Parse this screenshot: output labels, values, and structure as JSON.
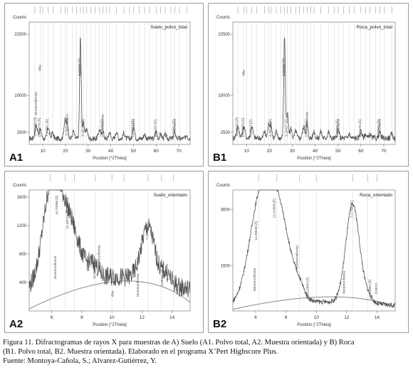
{
  "figure": {
    "caption_lines": [
      "Figura 11. Difractogramas de rayos X para muestras de A) Suelo (A1. Polvo total, A2. Muestra orientada) y B) Roca",
      "(B1. Polvo total, B2. Muestra orientada). Elaborado en el programa X’Pert Highscore Plus.",
      "Fuente: Montoya-Cañola, S.; Alvarez-Gutiérrez, Y."
    ]
  },
  "chart_data": [
    {
      "panel_label": "A1",
      "type": "line",
      "title": "Suelo_polvo_total",
      "ylabel": "Counts",
      "xlabel": "Position [°2Theta]",
      "xlim": [
        4,
        75
      ],
      "ylim": [
        0,
        25000
      ],
      "x_ticks": [
        10,
        20,
        30,
        40,
        50,
        60,
        70
      ],
      "y_ticks": [
        2500,
        10000,
        22500
      ],
      "baseline": 1200,
      "peaks": [
        {
          "x": 7.1,
          "y": 2600,
          "w": 0.6
        },
        {
          "x": 8.9,
          "y": 1800,
          "w": 0.5
        },
        {
          "x": 12.4,
          "y": 2300,
          "w": 0.5
        },
        {
          "x": 14.3,
          "y": 1200,
          "w": 0.4
        },
        {
          "x": 19.8,
          "y": 3800,
          "w": 0.5
        },
        {
          "x": 20.9,
          "y": 2800,
          "w": 0.4
        },
        {
          "x": 23.5,
          "y": 1500,
          "w": 0.4
        },
        {
          "x": 26.6,
          "y": 20800,
          "w": 0.35
        },
        {
          "x": 28.0,
          "y": 3500,
          "w": 0.4
        },
        {
          "x": 29.4,
          "y": 2000,
          "w": 0.4
        },
        {
          "x": 35.0,
          "y": 1800,
          "w": 0.5
        },
        {
          "x": 36.5,
          "y": 1600,
          "w": 0.4
        },
        {
          "x": 39.5,
          "y": 1300,
          "w": 0.4
        },
        {
          "x": 42.5,
          "y": 1500,
          "w": 0.4
        },
        {
          "x": 45.8,
          "y": 1200,
          "w": 0.4
        },
        {
          "x": 50.1,
          "y": 2700,
          "w": 0.4
        },
        {
          "x": 54.9,
          "y": 900,
          "w": 0.4
        },
        {
          "x": 60.0,
          "y": 1500,
          "w": 0.4
        },
        {
          "x": 62.0,
          "y": 900,
          "w": 0.4
        },
        {
          "x": 64.0,
          "y": 800,
          "w": 0.4
        },
        {
          "x": 68.2,
          "y": 1400,
          "w": 0.4
        },
        {
          "x": 73.5,
          "y": 800,
          "w": 0.4
        }
      ],
      "ref_lines": [
        6.5,
        8.8,
        10.0,
        12.3,
        14.5,
        17.9,
        19.8,
        20.9,
        23.1,
        24.9,
        26.6,
        27.9,
        29.4,
        31.2,
        33.1,
        35.0,
        36.5,
        38.1,
        39.5,
        42.5,
        45.8,
        48.3,
        50.1,
        52.5,
        54.9,
        57.1,
        60.0,
        62.0,
        64.0,
        66.5,
        68.2,
        70.3,
        73.5
      ],
      "annotations": [
        {
          "x": 26.6,
          "y": 14000,
          "text": "3,34292 [Å]"
        },
        {
          "x": 26.9,
          "y": 14000,
          "text": "Cuarzo"
        },
        {
          "x": 7.0,
          "y": 1600,
          "text": "14,96338 [Å]"
        },
        {
          "x": 7.4,
          "y": 6000,
          "text": "Montmorillonita"
        },
        {
          "x": 8.9,
          "y": 1500,
          "text": "10,01170 [Å]"
        },
        {
          "x": 9.2,
          "y": 15000,
          "text": "Illita"
        },
        {
          "x": 12.4,
          "y": 1600,
          "text": "7,17521 [Å]"
        },
        {
          "x": 20.9,
          "y": 1800,
          "text": "4,25721 [Å]"
        },
        {
          "x": 21.2,
          "y": 4000,
          "text": "Cuarzo"
        },
        {
          "x": 28.0,
          "y": 1600,
          "text": "3,19130 [Å]"
        },
        {
          "x": 36.5,
          "y": 1500,
          "text": "2,45913 [Å]"
        },
        {
          "x": 36.9,
          "y": 3000,
          "text": "Moscovita"
        },
        {
          "x": 50.1,
          "y": 1500,
          "text": "1,81813 [Å]"
        },
        {
          "x": 50.5,
          "y": 3000,
          "text": "Cuarzo"
        },
        {
          "x": 60.0,
          "y": 1500,
          "text": "1,54162 [Å]"
        },
        {
          "x": 68.2,
          "y": 1500,
          "text": "1,37541 [Å]"
        },
        {
          "x": 68.6,
          "y": 3000,
          "text": "Cuarzo"
        }
      ]
    },
    {
      "panel_label": "B1",
      "type": "line",
      "title": "Roca_polvo_total",
      "ylabel": "Counts",
      "xlabel": "Position [°2Theta]",
      "xlim": [
        4,
        75
      ],
      "ylim": [
        0,
        25000
      ],
      "x_ticks": [
        10,
        20,
        30,
        40,
        50,
        60,
        70
      ],
      "y_ticks": [
        2500,
        10000,
        22500
      ],
      "baseline": 1300,
      "peaks": [
        {
          "x": 6.2,
          "y": 2200,
          "w": 0.6
        },
        {
          "x": 8.8,
          "y": 2400,
          "w": 0.5
        },
        {
          "x": 12.3,
          "y": 2400,
          "w": 0.5
        },
        {
          "x": 17.8,
          "y": 1400,
          "w": 0.4
        },
        {
          "x": 19.8,
          "y": 2900,
          "w": 0.5
        },
        {
          "x": 20.8,
          "y": 2200,
          "w": 0.4
        },
        {
          "x": 23.0,
          "y": 1300,
          "w": 0.4
        },
        {
          "x": 26.6,
          "y": 21000,
          "w": 0.35
        },
        {
          "x": 27.9,
          "y": 5000,
          "w": 0.4
        },
        {
          "x": 29.4,
          "y": 2000,
          "w": 0.4
        },
        {
          "x": 31.5,
          "y": 1500,
          "w": 0.4
        },
        {
          "x": 35.0,
          "y": 2300,
          "w": 0.5
        },
        {
          "x": 36.5,
          "y": 2800,
          "w": 0.4
        },
        {
          "x": 39.5,
          "y": 1500,
          "w": 0.4
        },
        {
          "x": 42.5,
          "y": 1400,
          "w": 0.4
        },
        {
          "x": 45.8,
          "y": 1400,
          "w": 0.4
        },
        {
          "x": 50.1,
          "y": 1800,
          "w": 0.4
        },
        {
          "x": 54.9,
          "y": 900,
          "w": 0.4
        },
        {
          "x": 60.0,
          "y": 1600,
          "w": 0.4
        },
        {
          "x": 62.0,
          "y": 900,
          "w": 0.4
        },
        {
          "x": 64.0,
          "y": 800,
          "w": 0.4
        },
        {
          "x": 68.2,
          "y": 1300,
          "w": 0.4
        },
        {
          "x": 73.5,
          "y": 800,
          "w": 0.4
        }
      ],
      "ref_lines": [
        6.2,
        8.8,
        10.0,
        12.3,
        14.5,
        17.8,
        19.8,
        20.8,
        23.0,
        24.9,
        26.6,
        27.9,
        29.4,
        31.5,
        33.1,
        35.0,
        36.5,
        38.1,
        39.5,
        42.5,
        45.8,
        48.3,
        50.1,
        52.5,
        54.9,
        57.1,
        60.0,
        62.0,
        64.0,
        66.5,
        68.2,
        70.3,
        73.5
      ],
      "annotations": [
        {
          "x": 26.6,
          "y": 14000,
          "text": "3,34292 [Å]"
        },
        {
          "x": 27.0,
          "y": 14000,
          "text": "Cuarzo"
        },
        {
          "x": 6.2,
          "y": 1600,
          "text": "14,20311 [Å]"
        },
        {
          "x": 8.8,
          "y": 1500,
          "text": "10,01170 [Å]"
        },
        {
          "x": 9.1,
          "y": 14000,
          "text": "Illita"
        },
        {
          "x": 12.3,
          "y": 1500,
          "text": "7,18613 [Å]"
        },
        {
          "x": 20.8,
          "y": 1600,
          "text": "4,26134 [Å]"
        },
        {
          "x": 27.9,
          "y": 1600,
          "text": "3,19427 [Å]"
        },
        {
          "x": 36.5,
          "y": 1500,
          "text": "2,45873 [Å]"
        },
        {
          "x": 36.9,
          "y": 3500,
          "text": "Moscovita"
        },
        {
          "x": 50.1,
          "y": 1500,
          "text": "1,81825 [Å]"
        },
        {
          "x": 50.5,
          "y": 3000,
          "text": "Cuarzo"
        },
        {
          "x": 60.0,
          "y": 1500,
          "text": "1,54175 [Å]"
        },
        {
          "x": 68.2,
          "y": 1500,
          "text": "1,37555 [Å]"
        },
        {
          "x": 68.6,
          "y": 3000,
          "text": "Cuarzo"
        }
      ]
    },
    {
      "panel_label": "A2",
      "type": "line",
      "title": "Suelo_orientado",
      "ylabel": "Counts",
      "xlabel": "Position [°2Theta]",
      "xlim": [
        4.5,
        15.2
      ],
      "ylim": [
        0,
        1700
      ],
      "x_ticks": [
        6,
        8,
        10,
        12,
        14
      ],
      "y_ticks": [
        400,
        800,
        1200,
        1600
      ],
      "baseline": 300,
      "peaks": [
        {
          "x": 5.9,
          "y": 1000,
          "w": 0.55
        },
        {
          "x": 6.9,
          "y": 950,
          "w": 0.8
        },
        {
          "x": 8.8,
          "y": 150,
          "w": 0.3
        },
        {
          "x": 12.4,
          "y": 750,
          "w": 0.45
        },
        {
          "x": 13.6,
          "y": 150,
          "w": 0.3
        }
      ],
      "ref_lines": [
        5.9,
        6.9,
        7.5,
        8.9,
        10.0,
        10.8,
        12.4,
        13.3,
        14.1
      ],
      "background_curve": {
        "y_start": 30,
        "y_peak": 420,
        "x_peak": 11.5,
        "y_end": 120
      },
      "annotations": [
        {
          "x": 6.4,
          "y": 1350,
          "text": "14,70068 [Å]"
        },
        {
          "x": 7.1,
          "y": 1150,
          "text": "12,48733 [Å]"
        },
        {
          "x": 6.3,
          "y": 450,
          "text": "Montmorillonita"
        },
        {
          "x": 8.9,
          "y": 450,
          "text": "10,01170 [Å]"
        },
        {
          "x": 9.2,
          "y": 600,
          "text": "Montmorillonita"
        },
        {
          "x": 10.1,
          "y": 200,
          "text": "Illita"
        },
        {
          "x": 12.4,
          "y": 1000,
          "text": "7,15983 [Å]"
        },
        {
          "x": 11.8,
          "y": 200,
          "text": "Montmorillonita"
        },
        {
          "x": 13.4,
          "y": 350,
          "text": "3,95711 [Å]"
        },
        {
          "x": 14.3,
          "y": 350,
          "text": "Cuarzo"
        }
      ]
    },
    {
      "panel_label": "B2",
      "type": "line",
      "title": "Roca_orientado",
      "ylabel": "Counts",
      "xlabel": "Position [°2Theta]",
      "xlim": [
        4.5,
        15.2
      ],
      "ylim": [
        0,
        4300
      ],
      "x_ticks": [
        6,
        8,
        10,
        12,
        14
      ],
      "y_ticks": [
        1600,
        3600
      ],
      "baseline": 200,
      "peaks": [
        {
          "x": 6.2,
          "y": 2900,
          "w": 0.7
        },
        {
          "x": 7.4,
          "y": 3400,
          "w": 0.8
        },
        {
          "x": 8.9,
          "y": 300,
          "w": 0.3
        },
        {
          "x": 12.4,
          "y": 3500,
          "w": 0.45
        },
        {
          "x": 13.4,
          "y": 200,
          "w": 0.3
        }
      ],
      "ref_lines": [
        6.2,
        7.4,
        8.9,
        10.0,
        12.4,
        13.4,
        14.0
      ],
      "background_curve": {
        "y_start": 60,
        "y_peak": 500,
        "x_peak": 11.5,
        "y_end": 150
      },
      "annotations": [
        {
          "x": 6.1,
          "y": 2500,
          "text": "14,28038 [Å]"
        },
        {
          "x": 7.3,
          "y": 3300,
          "text": "12,42555 [Å]"
        },
        {
          "x": 6.0,
          "y": 700,
          "text": "Montmorillonita"
        },
        {
          "x": 8.8,
          "y": 1500,
          "text": "Montmorillonita"
        },
        {
          "x": 9.5,
          "y": 500,
          "text": "10,22655 [Å]"
        },
        {
          "x": 12.4,
          "y": 3300,
          "text": "7,17709 [Å]"
        },
        {
          "x": 11.9,
          "y": 600,
          "text": "Montmorillonita"
        },
        {
          "x": 13.6,
          "y": 500,
          "text": "3,55802 [Å]"
        },
        {
          "x": 14.0,
          "y": 600,
          "text": "Cuarzo"
        }
      ]
    }
  ]
}
